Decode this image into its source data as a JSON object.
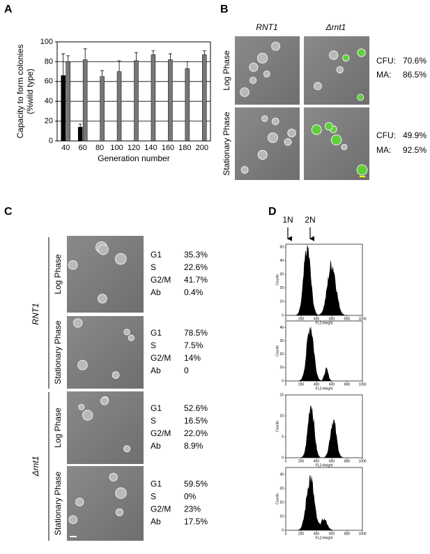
{
  "panel_labels": [
    "A",
    "B",
    "C",
    "D"
  ],
  "chart_data": {
    "type": "bar",
    "y_label": [
      "Capacity to form colonies",
      "(%wild type)"
    ],
    "x_label": "Generation number",
    "categories": [
      "40",
      "60",
      "80",
      "100",
      "120",
      "140",
      "160",
      "180",
      "200"
    ],
    "series": [
      {
        "color": "#000000",
        "values": [
          66,
          14,
          null,
          null,
          null,
          null,
          null,
          null,
          null
        ],
        "errors": [
          22,
          3,
          null,
          null,
          null,
          null,
          null,
          null,
          null
        ]
      },
      {
        "color": "#777777",
        "values": [
          80,
          82,
          65,
          70,
          81,
          87,
          82,
          73,
          87
        ],
        "errors": [
          6,
          11,
          6,
          11,
          8,
          4,
          6,
          7,
          4
        ]
      }
    ],
    "ylim": [
      0,
      100
    ],
    "yticks": [
      0,
      20,
      40,
      60,
      80,
      100
    ],
    "grid": [
      20,
      40,
      60,
      80
    ]
  },
  "panel_b": {
    "columns": [
      "RNT1",
      "Δrnt1"
    ],
    "rows": [
      "Log Phase",
      "Stationary Phase"
    ],
    "stats": [
      [
        [
          "CFU:",
          "70.6%"
        ],
        [
          "MA:",
          "86.5%"
        ]
      ],
      [
        [
          "CFU:",
          "49.9%"
        ],
        [
          "MA:",
          "92.5%"
        ]
      ]
    ]
  },
  "panel_c": {
    "strains": [
      "RNT1",
      "Δrnt1"
    ],
    "phases": [
      "Log Phase",
      "Stationary Phase",
      "Log Phase",
      "Stationary Phase"
    ],
    "blocks": [
      [
        [
          "G1",
          "35.3%"
        ],
        [
          "S",
          "22.6%"
        ],
        [
          "G2/M",
          "41.7%"
        ],
        [
          "Ab",
          "0.4%"
        ]
      ],
      [
        [
          "G1",
          "78.5%"
        ],
        [
          "S",
          "7.5%"
        ],
        [
          "G2/M",
          "14%"
        ],
        [
          "Ab",
          "0"
        ]
      ],
      [
        [
          "G1",
          "52.6%"
        ],
        [
          "S",
          "16.5%"
        ],
        [
          "G2/M",
          "22.0%"
        ],
        [
          "Ab",
          "8.9%"
        ]
      ],
      [
        [
          "G1",
          "59.5%"
        ],
        [
          "S",
          "0%"
        ],
        [
          "G2/M",
          "23%"
        ],
        [
          "Ab",
          "17.5%"
        ]
      ]
    ]
  },
  "panel_d": {
    "markers": [
      "1N",
      "2N"
    ],
    "y_label": "Counts",
    "x_label": "FL2-Height",
    "xticks": [
      0,
      200,
      400,
      600,
      800,
      1000
    ],
    "xlim": [
      0,
      1000
    ],
    "histograms": [
      {
        "ylim": [
          0,
          52
        ],
        "yticks": [
          0,
          10,
          20,
          30,
          40,
          50
        ]
      },
      {
        "ylim": [
          0,
          45
        ],
        "yticks": [
          0,
          10,
          20,
          30,
          40
        ]
      },
      {
        "ylim": [
          0,
          15
        ],
        "yticks": [
          0,
          5,
          10,
          15
        ]
      },
      {
        "ylim": [
          0,
          45
        ],
        "yticks": [
          0,
          10,
          20,
          30,
          40
        ]
      }
    ]
  }
}
